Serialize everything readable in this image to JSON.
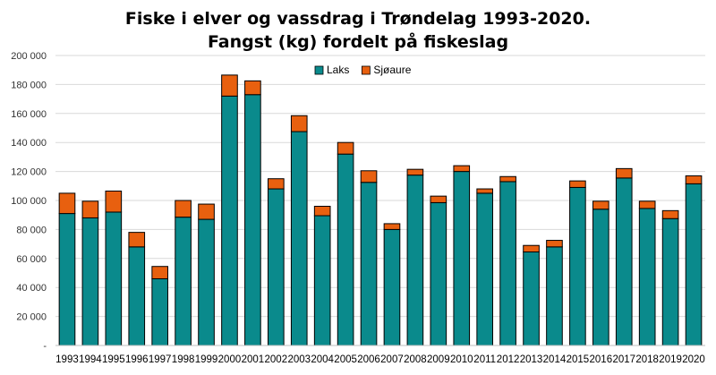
{
  "chart_data": {
    "type": "bar",
    "stacked": true,
    "title_line1": "Fiske i elver og vassdrag i Trøndelag 1993-2020.",
    "title_line2": "Fangst (kg) fordelt på fiskeslag",
    "xlabel": "",
    "ylabel": "",
    "ylim": [
      0,
      200000
    ],
    "yticks": [
      "-",
      "20 000",
      "40 000",
      "60 000",
      "80 000",
      "100 000",
      "120 000",
      "140 000",
      "160 000",
      "180 000",
      "200 000"
    ],
    "grid": true,
    "legend_position": "top-right",
    "categories": [
      "1993",
      "1994",
      "1995",
      "1996",
      "1997",
      "1998",
      "1999",
      "2000",
      "2001",
      "2002",
      "2003",
      "2004",
      "2005",
      "2006",
      "2007",
      "2008",
      "2009",
      "2010",
      "2011",
      "2012",
      "2013",
      "2014",
      "2015",
      "2016",
      "2017",
      "2018",
      "2019",
      "2020"
    ],
    "series": [
      {
        "name": "Laks",
        "color": "#0a8a8c",
        "values": [
          91000,
          88000,
          92000,
          68000,
          46000,
          88500,
          87000,
          172000,
          173000,
          108000,
          147500,
          89500,
          132000,
          112500,
          80000,
          117500,
          98500,
          120000,
          105000,
          113000,
          64500,
          68000,
          109000,
          94000,
          115500,
          94500,
          87500,
          111500
        ]
      },
      {
        "name": "Sjøaure",
        "color": "#e8600f",
        "values": [
          14000,
          11500,
          14500,
          10000,
          8500,
          11500,
          10500,
          14500,
          9500,
          7000,
          11000,
          6500,
          8000,
          8000,
          4000,
          4000,
          4500,
          4000,
          3000,
          3500,
          4500,
          4500,
          4500,
          5500,
          6500,
          5000,
          5500,
          5500
        ]
      }
    ]
  }
}
